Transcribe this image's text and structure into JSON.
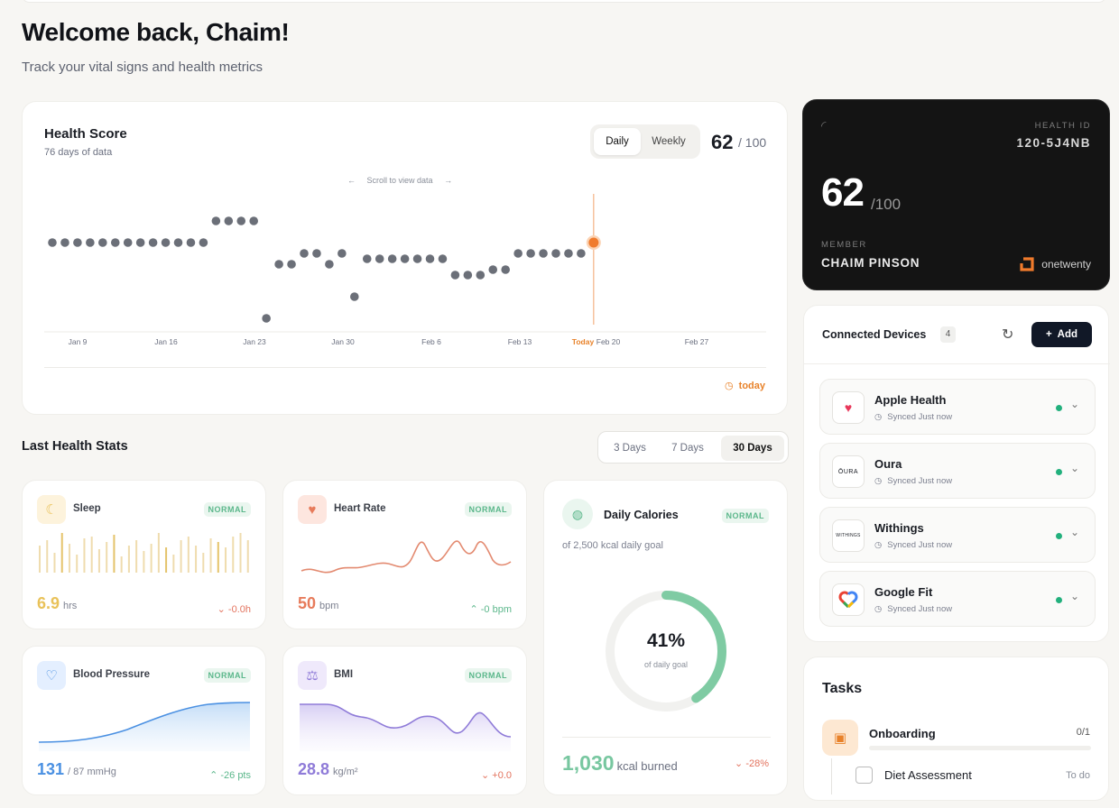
{
  "header": {
    "welcome": "Welcome back, Chaim!",
    "subtitle": "Track your vital signs and health metrics"
  },
  "health_score": {
    "title": "Health Score",
    "subtitle": "76 days of data",
    "toggle": {
      "active": "Daily",
      "inactive": "Weekly"
    },
    "score": "62",
    "score_max": "/ 100",
    "scroll_hint": "Scroll to view data",
    "today_label": "today",
    "accent_color": "#f07b2c",
    "chart_data": {
      "type": "scatter",
      "x_ticks": [
        "Jan 9",
        "Jan 16",
        "Jan 23",
        "Jan 30",
        "Feb 6",
        "Feb 13",
        "Today",
        "Feb 20",
        "Feb 27"
      ],
      "values": [
        62,
        62,
        62,
        62,
        62,
        62,
        62,
        62,
        62,
        62,
        62,
        62,
        62,
        66,
        66,
        66,
        66,
        48,
        58,
        58,
        60,
        60,
        58,
        60,
        52,
        59,
        59,
        59,
        59,
        59,
        59,
        59,
        56,
        56,
        56,
        57,
        57,
        60,
        60,
        60,
        60,
        60,
        60,
        62
      ],
      "today_index": 43
    }
  },
  "stats": {
    "title": "Last Health Stats",
    "ranges": [
      "3 Days",
      "7 Days",
      "30 Days"
    ],
    "active_range": "30 Days",
    "sleep": {
      "label": "Sleep",
      "badge": "NORMAL",
      "value": "6.9",
      "unit": "hrs",
      "delta": "-0.0h",
      "color": "#e9c25a"
    },
    "heart": {
      "label": "Heart Rate",
      "badge": "NORMAL",
      "value": "50",
      "unit": "bpm",
      "delta": "-0 bpm",
      "color": "#e77b5b"
    },
    "bp": {
      "label": "Blood Pressure",
      "badge": "NORMAL",
      "value": "131",
      "unit": "/ 87 mmHg",
      "delta": "-26 pts",
      "color": "#4a90e2"
    },
    "bmi": {
      "label": "BMI",
      "badge": "NORMAL",
      "value": "28.8",
      "unit": "kg/m²",
      "delta": "+0.0",
      "color": "#8f7bd8"
    },
    "calories": {
      "label": "Daily Calories",
      "badge": "NORMAL",
      "goal": "of 2,500 kcal daily goal",
      "percent": "41%",
      "percent_value": 0.41,
      "percent_sub": "of daily goal",
      "burned": "1,030",
      "burned_unit": "kcal burned",
      "delta": "-28%",
      "color": "#7fcba3"
    }
  },
  "health_id": {
    "label": "HEALTH ID",
    "value": "120-5J4NB",
    "score": "62",
    "score_max": "/100",
    "member_label": "MEMBER",
    "member": "CHAIM PINSON",
    "brand": "onetwenty"
  },
  "devices": {
    "title": "Connected Devices",
    "count": "4",
    "add_label": "Add",
    "items": [
      {
        "name": "Apple Health",
        "status": "Synced Just now",
        "icon": "heart-icon"
      },
      {
        "name": "Oura",
        "status": "Synced Just now",
        "icon": "oura-logo"
      },
      {
        "name": "Withings",
        "status": "Synced Just now",
        "icon": "withings-logo"
      },
      {
        "name": "Google Fit",
        "status": "Synced Just now",
        "icon": "google-fit-logo"
      }
    ]
  },
  "tasks": {
    "title": "Tasks",
    "group": "Onboarding",
    "progress": "0/1",
    "item": "Diet Assessment",
    "item_status": "To do"
  }
}
